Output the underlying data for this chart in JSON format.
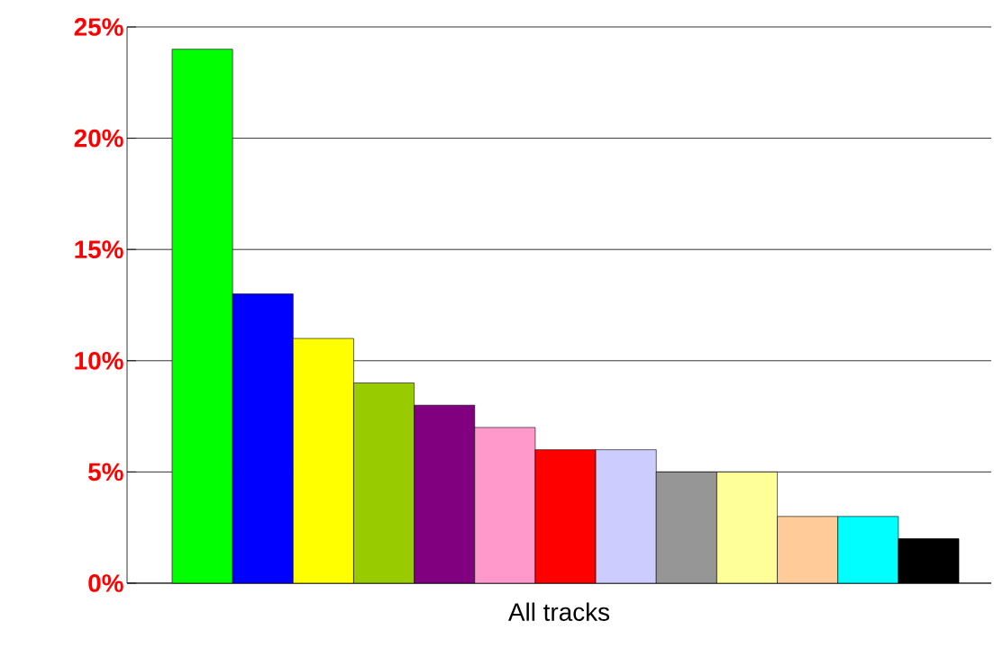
{
  "chart_data": {
    "type": "bar",
    "xlabel": "All tracks",
    "categories": [
      null,
      null,
      null,
      null,
      null,
      null,
      null,
      null,
      null,
      null,
      null,
      null,
      null
    ],
    "values": [
      24,
      13,
      11,
      9,
      8,
      7,
      6,
      6,
      5,
      5,
      3,
      3,
      2
    ],
    "colors": [
      "#00ff00",
      "#0000ff",
      "#ffff00",
      "#99cc00",
      "#800080",
      "#ff99cc",
      "#ff0000",
      "#ccccff",
      "#969696",
      "#ffff99",
      "#ffcc99",
      "#00ffff",
      "#000000"
    ],
    "ylim": [
      0,
      25
    ],
    "yticks": [
      {
        "value": 0,
        "label": "0%"
      },
      {
        "value": 5,
        "label": "5%"
      },
      {
        "value": 10,
        "label": "10%"
      },
      {
        "value": 15,
        "label": "15%"
      },
      {
        "value": 20,
        "label": "20%"
      },
      {
        "value": 25,
        "label": "25%"
      }
    ],
    "grid": "y"
  }
}
